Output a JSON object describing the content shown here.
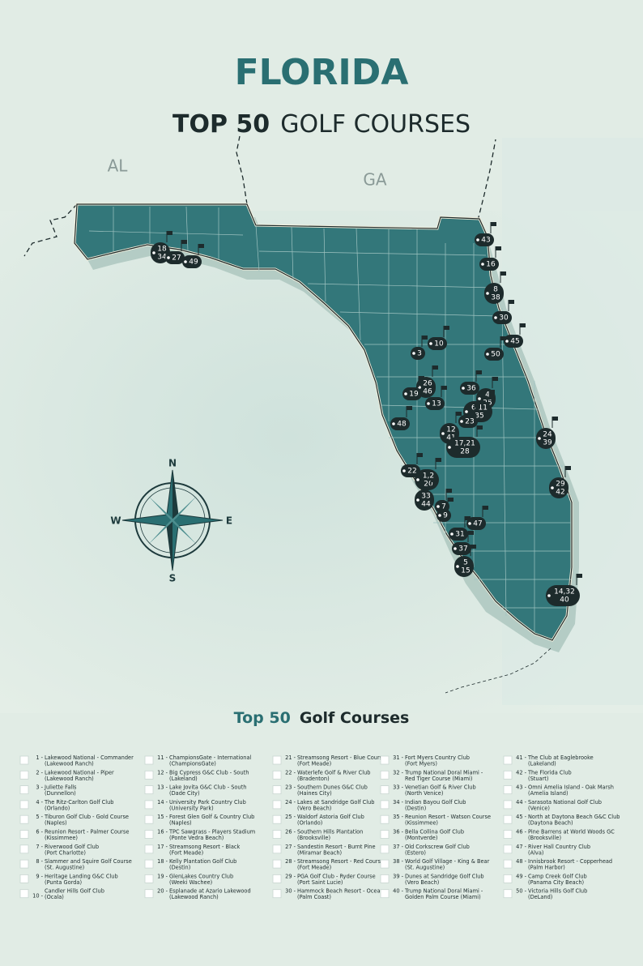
{
  "header": {
    "title": "FLORIDA",
    "subtitle_bold": "TOP 50",
    "subtitle_regular": "GOLF COURSES"
  },
  "map": {
    "state_labels": [
      "AL",
      "GA"
    ],
    "compass": [
      "N",
      "S",
      "E",
      "W"
    ],
    "markers": [
      {
        "lines": [
          "18",
          "34"
        ]
      },
      {
        "lines": [
          "27"
        ]
      },
      {
        "lines": [
          "49"
        ]
      },
      {
        "lines": [
          "43"
        ]
      },
      {
        "lines": [
          "16"
        ]
      },
      {
        "lines": [
          "8",
          "38"
        ]
      },
      {
        "lines": [
          "30"
        ]
      },
      {
        "lines": [
          "45"
        ]
      },
      {
        "lines": [
          "50"
        ]
      },
      {
        "lines": [
          "10"
        ]
      },
      {
        "lines": [
          "3"
        ]
      },
      {
        "lines": [
          "26",
          "46"
        ]
      },
      {
        "lines": [
          "19"
        ]
      },
      {
        "lines": [
          "13"
        ]
      },
      {
        "lines": [
          "36"
        ]
      },
      {
        "lines": [
          "4",
          "25"
        ]
      },
      {
        "lines": [
          "6 11",
          "35"
        ]
      },
      {
        "lines": [
          "23"
        ]
      },
      {
        "lines": [
          "12",
          "41"
        ]
      },
      {
        "lines": [
          "17,21",
          "28"
        ]
      },
      {
        "lines": [
          "48"
        ]
      },
      {
        "lines": [
          "24",
          "39"
        ]
      },
      {
        "lines": [
          "22"
        ]
      },
      {
        "lines": [
          "1,2",
          "20"
        ]
      },
      {
        "lines": [
          "29",
          "42"
        ]
      },
      {
        "lines": [
          "33",
          "44"
        ]
      },
      {
        "lines": [
          "7"
        ]
      },
      {
        "lines": [
          "9"
        ]
      },
      {
        "lines": [
          "47"
        ]
      },
      {
        "lines": [
          "31"
        ]
      },
      {
        "lines": [
          "37"
        ]
      },
      {
        "lines": [
          "5",
          "15"
        ]
      },
      {
        "lines": [
          "14,32",
          "40"
        ]
      }
    ]
  },
  "list": {
    "heading_accent": "Top 50",
    "heading_text": "Golf Courses",
    "courses": [
      {
        "number": "1 -",
        "name": "Lakewood National - Commander",
        "location": "(Lakewood Ranch)"
      },
      {
        "number": "2 -",
        "name": "Lakewood National - Piper",
        "location": "(Lakewood Ranch)"
      },
      {
        "number": "3 -",
        "name": "Juliette Falls",
        "location": "(Dunnellon)"
      },
      {
        "number": "4 -",
        "name": "The Ritz-Carlton Golf Club",
        "location": "(Orlando)"
      },
      {
        "number": "5 -",
        "name": "Tiburon Golf Club - Gold Course",
        "location": "(Naples)"
      },
      {
        "number": "6 -",
        "name": "Reunion Resort - Palmer Course",
        "location": "(Kissimmee)"
      },
      {
        "number": "7 -",
        "name": "Riverwood Golf Club",
        "location": "(Port Charlotte)"
      },
      {
        "number": "8 -",
        "name": "Slammer and Squire Golf Course",
        "location": "(St. Augustine)"
      },
      {
        "number": "9 -",
        "name": "Heritage Landing G&C Club",
        "location": "(Punta Gorda)"
      },
      {
        "number": "10 -",
        "name": "Candler Hills Golf Club",
        "location": "(Ocala)"
      },
      {
        "number": "11 -",
        "name": "ChampionsGate - International",
        "location": "(ChampionsGate)"
      },
      {
        "number": "12 -",
        "name": "Big Cypress G&C Club - South",
        "location": "(Lakeland)"
      },
      {
        "number": "13 -",
        "name": "Lake Jovita G&C Club - South",
        "location": "(Dade City)"
      },
      {
        "number": "14 -",
        "name": "University Park Country Club",
        "location": "(University Park)"
      },
      {
        "number": "15 -",
        "name": "Forest Glen Golf & Country Club",
        "location": "(Naples)"
      },
      {
        "number": "16 -",
        "name": "TPC Sawgrass - Players Stadium",
        "location": "(Ponte Vedra Beach)"
      },
      {
        "number": "17 -",
        "name": "Streamsong Resort - Black",
        "location": "(Fort Meade)"
      },
      {
        "number": "18 -",
        "name": "Kelly Plantation Golf Club",
        "location": "(Destin)"
      },
      {
        "number": "19 -",
        "name": "GlenLakes Country Club",
        "location": "(Weeki Wachee)"
      },
      {
        "number": "20 -",
        "name": "Esplanade at Azario Lakewood",
        "location": "(Lakewood Ranch)"
      },
      {
        "number": "21 -",
        "name": "Streamsong Resort - Blue Course",
        "location": "(Fort Meade)"
      },
      {
        "number": "22 -",
        "name": "Waterlefe Golf & River Club",
        "location": "(Bradenton)"
      },
      {
        "number": "23 -",
        "name": "Southern Dunes G&C Club",
        "location": "(Haines City)"
      },
      {
        "number": "24 -",
        "name": "Lakes at Sandridge Golf Club",
        "location": "(Vero Beach)"
      },
      {
        "number": "25 -",
        "name": "Waldorf Astoria Golf Club",
        "location": "(Orlando)"
      },
      {
        "number": "26 -",
        "name": "Southern Hills Plantation",
        "location": "(Brooksville)"
      },
      {
        "number": "27 -",
        "name": "Sandestin Resort - Burnt Pine",
        "location": "(Miramar Beach)"
      },
      {
        "number": "28 -",
        "name": "Streamsong Resort - Red Course",
        "location": "(Fort Meade)"
      },
      {
        "number": "29 -",
        "name": "PGA Golf Club - Ryder Course",
        "location": "(Port Saint Lucie)"
      },
      {
        "number": "30 -",
        "name": "Hammock Beach Resort - Ocean",
        "location": "(Palm Coast)"
      },
      {
        "number": "31 -",
        "name": "Fort Myers Country Club",
        "location": "(Fort Myers)"
      },
      {
        "number": "32 -",
        "name": "Trump National Doral Miami -",
        "location": "Red Tiger Course (Miami)"
      },
      {
        "number": "33 -",
        "name": "Venetian Golf & River Club",
        "location": "(North Venice)"
      },
      {
        "number": "34 -",
        "name": "Indian Bayou Golf Club",
        "location": "(Destin)"
      },
      {
        "number": "35 -",
        "name": "Reunion Resort - Watson Course",
        "location": "(Kissimmee)"
      },
      {
        "number": "36 -",
        "name": "Bella Collina Golf Club",
        "location": "(Montverde)"
      },
      {
        "number": "37 -",
        "name": "Old Corkscrew Golf Club",
        "location": "(Estero)"
      },
      {
        "number": "38 -",
        "name": "World Golf Village - King & Bear",
        "location": "(St. Augustine)"
      },
      {
        "number": "39 -",
        "name": "Dunes at Sandridge Golf Club",
        "location": "(Vero Beach)"
      },
      {
        "number": "40 -",
        "name": "Trump National Doral Miami -",
        "location": "Golden Palm Course (Miami)"
      },
      {
        "number": "41 -",
        "name": "The Club at Eaglebrooke",
        "location": "(Lakeland)"
      },
      {
        "number": "42 -",
        "name": "The Florida Club",
        "location": "(Stuart)"
      },
      {
        "number": "43 -",
        "name": "Omni Amelia Island - Oak Marsh",
        "location": "(Amelia Island)"
      },
      {
        "number": "44 -",
        "name": "Sarasota National Golf Club",
        "location": "(Venice)"
      },
      {
        "number": "45 -",
        "name": "North at Daytona Beach G&C Club",
        "location": "(Daytona Beach)"
      },
      {
        "number": "46 -",
        "name": "Pine Barrens at World Woods GC",
        "location": "(Brooksville)"
      },
      {
        "number": "47 -",
        "name": "River Hall Country Club",
        "location": "(Alva)"
      },
      {
        "number": "48 -",
        "name": "Innisbrook Resort - Copperhead",
        "location": "(Palm Harbor)"
      },
      {
        "number": "49 -",
        "name": "Camp Creek Golf Club",
        "location": "(Panama City Beach)"
      },
      {
        "number": "50 -",
        "name": "Victoria Hills Golf Club",
        "location": "(DeLand)"
      }
    ]
  }
}
